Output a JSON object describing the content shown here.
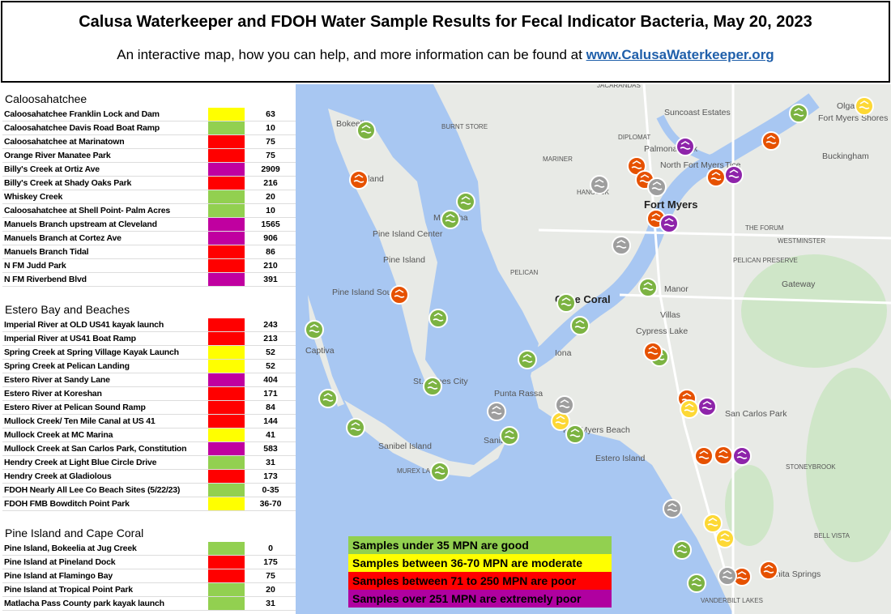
{
  "header": {
    "title": "Calusa Waterkeeper and FDOH Water Sample Results for Fecal Indicator Bacteria, May 20, 2023",
    "subtitle": "An interactive map, how you can help, and more information can be found at",
    "link": "www.CalusaWaterkeeper.org"
  },
  "table": {
    "sections": [
      {
        "title": "Caloosahatchee",
        "rows": [
          {
            "site": "Caloosahatchee Franklin Lock and Dam",
            "value": 63,
            "color": "#ffff00"
          },
          {
            "site": "Caloosahatchee Davis Road Boat Ramp",
            "value": 10,
            "color": "#92d050"
          },
          {
            "site": "Caloosahatchee at Marinatown",
            "value": 75,
            "color": "#ff0000"
          },
          {
            "site": "Orange River Manatee Park",
            "value": 75,
            "color": "#ff0000"
          },
          {
            "site": "Billy's Creek at Ortiz Ave",
            "value": 2909,
            "color": "#c000a0"
          },
          {
            "site": "Billy's Creek at Shady Oaks Park",
            "value": 216,
            "color": "#ff0000"
          },
          {
            "site": "Whiskey Creek",
            "value": 20,
            "color": "#92d050"
          },
          {
            "site": "Caloosahatchee at Shell Point- Palm Acres",
            "value": 10,
            "color": "#92d050"
          },
          {
            "site": "Manuels Branch upstream at Cleveland",
            "value": 1565,
            "color": "#c000a0"
          },
          {
            "site": "Manuels Branch at Cortez Ave",
            "value": 906,
            "color": "#c000a0"
          },
          {
            "site": "Manuels Branch Tidal",
            "value": 86,
            "color": "#ff0000"
          },
          {
            "site": "N FM Judd Park",
            "value": 210,
            "color": "#ff0000"
          },
          {
            "site": "N FM Riverbend Blvd",
            "value": 391,
            "color": "#c000a0"
          }
        ]
      },
      {
        "title": "Estero Bay and Beaches",
        "rows": [
          {
            "site": "Imperial River at OLD US41 kayak launch",
            "value": 243,
            "color": "#ff0000"
          },
          {
            "site": "Imperial River at US41 Boat Ramp",
            "value": 213,
            "color": "#ff0000"
          },
          {
            "site": "Spring Creek at Spring Village Kayak Launch",
            "value": 52,
            "color": "#ffff00"
          },
          {
            "site": "Spring Creek at Pelican Landing",
            "value": 52,
            "color": "#ffff00"
          },
          {
            "site": "Estero River at Sandy Lane",
            "value": 404,
            "color": "#c000a0"
          },
          {
            "site": "Estero River at Koreshan",
            "value": 171,
            "color": "#ff0000"
          },
          {
            "site": "Estero River at Pelican Sound Ramp",
            "value": 84,
            "color": "#ff0000"
          },
          {
            "site": "Mullock Creek/ Ten Mile Canal at US 41",
            "value": 144,
            "color": "#ff0000"
          },
          {
            "site": "Mullock Creek at MC Marina",
            "value": 41,
            "color": "#ffff00"
          },
          {
            "site": "Mullock Creek at San Carlos Park, Constitution",
            "value": 583,
            "color": "#c000a0"
          },
          {
            "site": "Hendry Creek at Light Blue Circle Drive",
            "value": 31,
            "color": "#92d050"
          },
          {
            "site": "Hendry Creek at Gladiolous",
            "value": 173,
            "color": "#ff0000"
          },
          {
            "site": "FDOH Nearly All Lee Co Beach Sites (5/22/23)",
            "value": "0-35",
            "color": "#92d050"
          },
          {
            "site": "FDOH FMB Bowditch Point Park",
            "value": "36-70",
            "color": "#ffff00"
          }
        ]
      },
      {
        "title": "Pine Island and Cape Coral",
        "rows": [
          {
            "site": "Pine Island, Bokeelia at Jug Creek",
            "value": 0,
            "color": "#92d050"
          },
          {
            "site": "Pine Island at Pineland Dock",
            "value": 175,
            "color": "#ff0000"
          },
          {
            "site": "Pine Island at Flamingo Bay",
            "value": 75,
            "color": "#ff0000"
          },
          {
            "site": "Pine Island at Tropical Point Park",
            "value": 20,
            "color": "#92d050"
          },
          {
            "site": "Matlacha Pass County park kayak launch",
            "value": 31,
            "color": "#92d050"
          }
        ]
      }
    ]
  },
  "legend": [
    {
      "text": "Samples under 35 MPN are good",
      "color": "#92d050",
      "textColor": "#000000"
    },
    {
      "text": "Samples between 36-70 MPN are moderate",
      "color": "#ffff00",
      "textColor": "#000000"
    },
    {
      "text": "Samples between 71 to 250 MPN are poor",
      "color": "#ff0000",
      "textColor": "#000000"
    },
    {
      "text": "Samples over 251 MPN are extremely poor",
      "color": "#b000a0",
      "textColor": "#000000"
    }
  ],
  "map": {
    "labels": [
      "Olga",
      "Fort Myers Shores",
      "Suncoast Estates",
      "Palmona Park",
      "North Fort Myers",
      "Tice",
      "Buckingham",
      "Fort Myers",
      "WESTMINSTER",
      "PELICAN PRESERVE",
      "Gateway",
      "THE FORUM",
      "Manor",
      "Villas",
      "Cypress Lake",
      "Cape Coral",
      "Iona",
      "Pine Island Center",
      "Pine Island",
      "Pine Island Sound",
      "Matlacha",
      "Bokeelia",
      "Pineland",
      "Captiva",
      "St. James City",
      "Punta Rassa",
      "Sanibel Island",
      "Sanibel",
      "Fort Myers Beach",
      "Estero Island",
      "San Carlos Park",
      "STONEYBROOK",
      "BELL VISTA",
      "MARINER",
      "BURNT STORE",
      "DIPLOMAT",
      "JACARANDAS",
      "PELICAN",
      "HANCOCK",
      "MUREX LAKES",
      "VANDERBILT LAKES",
      "Bonita Springs"
    ]
  }
}
